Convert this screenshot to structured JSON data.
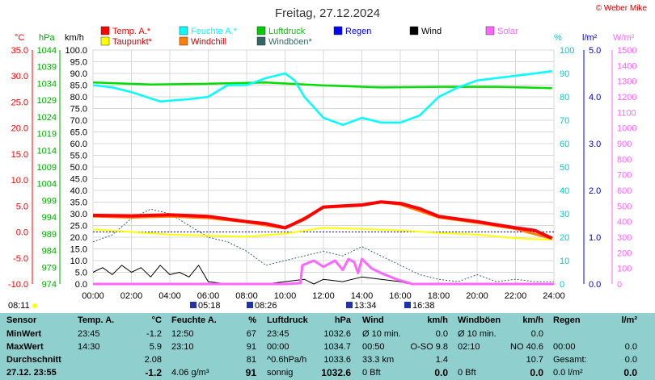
{
  "title": "Freitag, 27.12.2024",
  "credit": "© Weber Mike",
  "legend": [
    {
      "label": "Temp. A.*",
      "color": "#ff0000"
    },
    {
      "label": "Feuchte A.*",
      "color": "#00ffff"
    },
    {
      "label": "Luftdruck",
      "color": "#00cc00"
    },
    {
      "label": "Regen",
      "color": "#0000ff"
    },
    {
      "label": "Wind",
      "color": "#000000"
    },
    {
      "label": "Solar",
      "color": "#ff66ff"
    },
    {
      "label": "Taupunkt*",
      "color": "#ffff00"
    },
    {
      "label": "Windchill",
      "color": "#ff8000"
    },
    {
      "label": "Windböen*",
      "color": "#336666"
    }
  ],
  "axis_units": {
    "temp": "°C",
    "pressure": "hPa",
    "wind": "km/h",
    "humidity": "%",
    "rain": "l/m²",
    "solar": "W/m²"
  },
  "chart_data": {
    "type": "line",
    "x_ticks": [
      "00:00",
      "02:00",
      "04:00",
      "06:00",
      "08:00",
      "10:00",
      "12:00",
      "14:00",
      "16:00",
      "18:00",
      "20:00",
      "22:00",
      "24:00"
    ],
    "axes": {
      "temp": {
        "range": [
          -10,
          35
        ],
        "ticks": [
          "35.0",
          "30.0",
          "25.0",
          "20.0",
          "15.0",
          "10.0",
          "5.0",
          "0.0",
          "-5.0",
          "-10.0"
        ]
      },
      "pressure": {
        "range": [
          974,
          1044
        ],
        "ticks": [
          "1044",
          "1039",
          "1034",
          "1029",
          "1024",
          "1019",
          "1014",
          "1009",
          "1004",
          "999",
          "994",
          "989",
          "984",
          "979",
          "974"
        ]
      },
      "wind": {
        "range": [
          0,
          100
        ],
        "ticks": [
          "100.0",
          "95.0",
          "90.0",
          "85.0",
          "80.0",
          "75.0",
          "70.0",
          "65.0",
          "60.0",
          "55.0",
          "50.0",
          "45.0",
          "40.0",
          "35.0",
          "30.0",
          "25.0",
          "20.0",
          "15.0",
          "10.0",
          "5.0",
          "0.0"
        ]
      },
      "humidity": {
        "range": [
          0,
          100
        ],
        "ticks": [
          "100",
          "90",
          "80",
          "70",
          "60",
          "50",
          "40",
          "30",
          "20",
          "10",
          "0"
        ]
      },
      "rain": {
        "range": [
          0,
          5
        ],
        "ticks": [
          "5.0",
          "4.0",
          "3.0",
          "2.0",
          "1.0",
          "0.0"
        ]
      },
      "solar": {
        "range": [
          0,
          1500
        ],
        "ticks": [
          "1500",
          "1400",
          "1300",
          "1200",
          "1100",
          "1000",
          "900",
          "800",
          "700",
          "600",
          "500",
          "400",
          "300",
          "200",
          "100",
          "0"
        ]
      }
    },
    "series": [
      {
        "name": "Temp. A.*",
        "axis": "temp",
        "points": [
          [
            0,
            3.2
          ],
          [
            2,
            3.1
          ],
          [
            4,
            3.3
          ],
          [
            6,
            3.0
          ],
          [
            8,
            2.0
          ],
          [
            9,
            1.6
          ],
          [
            10,
            0.8
          ],
          [
            11,
            2.5
          ],
          [
            12,
            4.8
          ],
          [
            13,
            5.0
          ],
          [
            14,
            5.2
          ],
          [
            15,
            5.8
          ],
          [
            16,
            5.5
          ],
          [
            17,
            4.5
          ],
          [
            18,
            3.0
          ],
          [
            20,
            2.0
          ],
          [
            22,
            0.8
          ],
          [
            23,
            0.3
          ],
          [
            23.9,
            -1.2
          ]
        ]
      },
      {
        "name": "Feuchte A.*",
        "axis": "humidity",
        "points": [
          [
            0,
            85
          ],
          [
            1,
            84
          ],
          [
            2,
            82
          ],
          [
            3.5,
            78
          ],
          [
            5,
            79
          ],
          [
            6,
            80
          ],
          [
            7,
            85
          ],
          [
            8,
            85
          ],
          [
            9,
            88
          ],
          [
            10,
            90
          ],
          [
            10.5,
            87
          ],
          [
            11,
            80
          ],
          [
            12,
            71
          ],
          [
            13,
            68
          ],
          [
            14,
            71
          ],
          [
            15,
            69
          ],
          [
            16,
            69
          ],
          [
            17,
            72
          ],
          [
            18,
            80
          ],
          [
            19,
            84
          ],
          [
            20,
            87
          ],
          [
            21,
            88
          ],
          [
            22,
            89
          ],
          [
            23,
            90
          ],
          [
            23.9,
            91
          ]
        ]
      },
      {
        "name": "Luftdruck",
        "axis": "pressure",
        "points": [
          [
            0,
            1034.3
          ],
          [
            3,
            1033.7
          ],
          [
            6,
            1033.9
          ],
          [
            9,
            1034.3
          ],
          [
            12,
            1033.4
          ],
          [
            15,
            1032.8
          ],
          [
            18,
            1033.0
          ],
          [
            21,
            1033.0
          ],
          [
            23.9,
            1032.6
          ]
        ]
      },
      {
        "name": "Taupunkt*",
        "axis": "temp",
        "points": [
          [
            0,
            0.5
          ],
          [
            4,
            -0.5
          ],
          [
            8,
            -0.9
          ],
          [
            10,
            -0.3
          ],
          [
            12,
            0.8
          ],
          [
            14,
            0.6
          ],
          [
            16,
            0.3
          ],
          [
            18,
            -0.2
          ],
          [
            20,
            -0.5
          ],
          [
            22,
            -1.2
          ],
          [
            23.9,
            -1.5
          ]
        ]
      },
      {
        "name": "Windchill",
        "axis": "temp",
        "points": [
          [
            0,
            3.0
          ],
          [
            2,
            2.8
          ],
          [
            4,
            3.0
          ],
          [
            6,
            2.7
          ],
          [
            8,
            1.9
          ],
          [
            10,
            0.7
          ],
          [
            12,
            4.7
          ],
          [
            14,
            5.1
          ],
          [
            15,
            5.7
          ],
          [
            16,
            5.3
          ],
          [
            18,
            2.8
          ],
          [
            20,
            1.8
          ],
          [
            22,
            0.6
          ],
          [
            23.9,
            -1.3
          ]
        ]
      },
      {
        "name": "Solar",
        "axis": "solar",
        "points": [
          [
            0,
            0
          ],
          [
            8.4,
            0
          ],
          [
            10,
            0
          ],
          [
            10.8,
            5
          ],
          [
            10.9,
            120
          ],
          [
            11.5,
            150
          ],
          [
            12,
            110
          ],
          [
            12.6,
            150
          ],
          [
            13,
            90
          ],
          [
            13.3,
            160
          ],
          [
            13.6,
            140
          ],
          [
            13.8,
            70
          ],
          [
            14,
            160
          ],
          [
            14.5,
            100
          ],
          [
            15,
            70
          ],
          [
            15.8,
            30
          ],
          [
            16.5,
            5
          ],
          [
            16.6,
            0
          ],
          [
            24,
            0
          ]
        ]
      },
      {
        "name": "Wind",
        "axis": "wind",
        "points": [
          [
            0,
            5
          ],
          [
            0.5,
            7
          ],
          [
            1,
            4
          ],
          [
            1.5,
            8
          ],
          [
            2,
            5
          ],
          [
            2.5,
            7
          ],
          [
            3,
            3
          ],
          [
            3.5,
            8
          ],
          [
            4,
            4
          ],
          [
            4.5,
            5
          ],
          [
            5,
            3
          ],
          [
            5.5,
            8
          ],
          [
            6,
            1
          ],
          [
            7,
            0
          ],
          [
            9,
            0
          ],
          [
            10,
            1
          ],
          [
            11,
            2
          ],
          [
            11.5,
            0
          ],
          [
            12,
            2
          ],
          [
            13,
            1
          ],
          [
            14,
            3
          ],
          [
            15,
            2
          ],
          [
            16,
            1
          ],
          [
            16.5,
            0
          ],
          [
            24,
            0
          ]
        ]
      },
      {
        "name": "Windböen*",
        "axis": "wind",
        "points": [
          [
            0,
            18
          ],
          [
            1,
            21
          ],
          [
            2,
            28
          ],
          [
            3,
            32
          ],
          [
            4,
            30
          ],
          [
            5,
            25
          ],
          [
            6,
            20
          ],
          [
            7,
            18
          ],
          [
            8,
            14
          ],
          [
            9,
            8
          ],
          [
            10,
            10
          ],
          [
            11,
            12
          ],
          [
            12,
            14
          ],
          [
            13,
            12
          ],
          [
            14,
            16
          ],
          [
            15,
            12
          ],
          [
            16,
            8
          ],
          [
            17,
            4
          ],
          [
            18,
            2
          ],
          [
            19,
            1
          ],
          [
            20,
            4
          ],
          [
            21,
            1
          ],
          [
            22,
            2
          ],
          [
            23,
            1
          ],
          [
            24,
            1
          ]
        ]
      }
    ],
    "sun_markers": [
      {
        "label": "05:18"
      },
      {
        "label": "08:26"
      },
      {
        "label": "13:34"
      },
      {
        "label": "16:38"
      }
    ],
    "update_time": "08:11"
  },
  "stats": {
    "col_headers": [
      "Sensor",
      "Temp. A.",
      "°C",
      "Feuchte A.",
      "%",
      "Luftdruck",
      "hPa",
      "Wind",
      "km/h",
      "Windböen",
      "km/h",
      "Regen",
      "l/m²"
    ],
    "rows": [
      {
        "label": "MinWert",
        "temp_time": "23:45",
        "temp": "-1.2",
        "hum_time": "12:50",
        "hum": "67",
        "press_time": "23:45",
        "press": "1032.6",
        "wind_label": "Ø 10 min.",
        "wind": "0.0",
        "gust_label": "Ø 10 min.",
        "gust": "0.0",
        "rain_label": "",
        "rain": ""
      },
      {
        "label": "MaxWert",
        "temp_time": "14:30",
        "temp": "5.9",
        "hum_time": "23:10",
        "hum": "91",
        "press_time": "00:00",
        "press": "1034.7",
        "wind_label": "00:50",
        "wind_dir": "O-SO 9.8",
        "wind": "",
        "gust_label": "02:10",
        "gust_dir": "NO 40.6",
        "gust": "",
        "rain_label": "00:00",
        "rain": "0.0"
      },
      {
        "label": "Durchschnitt",
        "temp_time": "",
        "temp": "2.08",
        "hum_time": "",
        "hum": "81",
        "press_time": "^0.6hPa/h",
        "press": "1033.6",
        "wind_label": "33.3 km",
        "wind": "1.4",
        "gust_label": "",
        "gust": "10.7",
        "rain_label": "Gesamt:",
        "rain": "0.0"
      },
      {
        "label": "27.12. 23:55",
        "temp_time": "",
        "temp": "-1.2",
        "hum_time": "4.06 g/m³",
        "hum": "91",
        "press_time": "sonnig",
        "press": "1032.6",
        "wind_label": "0 Bft",
        "wind": "0.0",
        "gust_label": "0 Bft",
        "gust": "0.0",
        "rain_label": "0.0 l/m²",
        "rain": "0.0"
      }
    ]
  }
}
